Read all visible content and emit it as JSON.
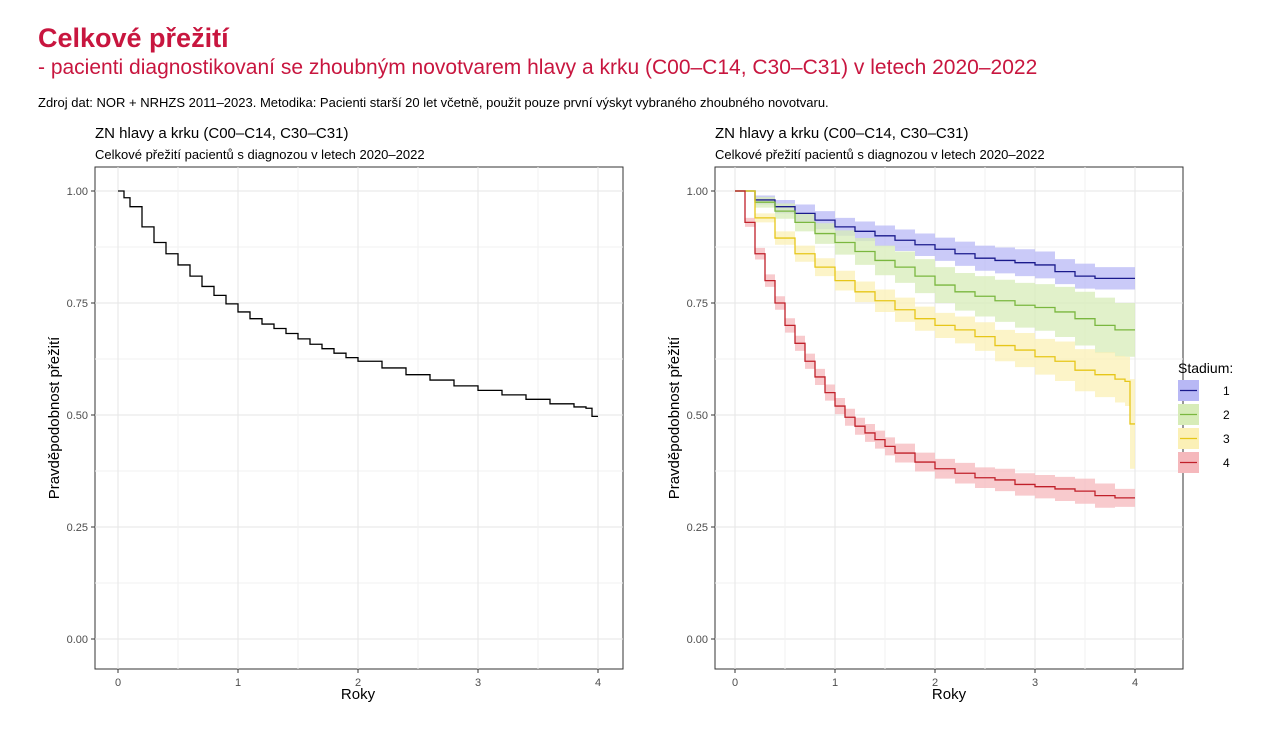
{
  "page": {
    "title": "Celkové přežití",
    "subtitle": "- pacienti diagnostikovaní se zhoubným novotvarem hlavy a krku (C00–C14, C30–C31) v letech 2020–2022",
    "source": "Zdroj dat: NOR + NRHZS 2011–2023. Metodika: Pacienti starší 20 let včetně, použit pouze první výskyt vybraného zhoubného novotvaru."
  },
  "chart_data": [
    {
      "type": "line",
      "title": "ZN hlavy a krku (C00–C14, C30–C31)",
      "subtitle": "Celkové přežití pacientů s diagnozou v letech 2020–2022",
      "xlabel": "Roky",
      "ylabel": "Pravděpodobnost přežití",
      "xlim": [
        0,
        4
      ],
      "ylim": [
        0,
        1
      ],
      "xticks": [
        "0",
        "1",
        "2",
        "3",
        "4"
      ],
      "yticks": [
        "0.00",
        "0.25",
        "0.50",
        "0.75",
        "1.00"
      ],
      "grid": true,
      "series": [
        {
          "color": "#000000",
          "x": [
            0,
            0.05,
            0.1,
            0.2,
            0.3,
            0.4,
            0.5,
            0.6,
            0.7,
            0.8,
            0.9,
            1.0,
            1.1,
            1.2,
            1.3,
            1.4,
            1.5,
            1.6,
            1.7,
            1.8,
            1.9,
            2.0,
            2.2,
            2.4,
            2.6,
            2.8,
            3.0,
            3.2,
            3.4,
            3.6,
            3.8,
            3.9,
            3.95,
            4.0
          ],
          "y": [
            1.0,
            0.985,
            0.965,
            0.92,
            0.885,
            0.86,
            0.835,
            0.81,
            0.787,
            0.767,
            0.748,
            0.73,
            0.715,
            0.703,
            0.693,
            0.682,
            0.67,
            0.658,
            0.648,
            0.638,
            0.628,
            0.62,
            0.605,
            0.59,
            0.578,
            0.565,
            0.555,
            0.545,
            0.535,
            0.525,
            0.518,
            0.515,
            0.497,
            0.497
          ]
        }
      ]
    },
    {
      "type": "line",
      "title": "ZN hlavy a krku (C00–C14, C30–C31)",
      "subtitle": "Celkové přežití pacientů s diagnozou v letech 2020–2022",
      "xlabel": "Roky",
      "ylabel": "Pravděpodobnost přežití",
      "xlim": [
        0,
        4
      ],
      "ylim": [
        0,
        1
      ],
      "xticks": [
        "0",
        "1",
        "2",
        "3",
        "4"
      ],
      "yticks": [
        "0.00",
        "0.25",
        "0.50",
        "0.75",
        "1.00"
      ],
      "grid": true,
      "legend": {
        "title": "Stadium:",
        "position": "right"
      },
      "series": [
        {
          "name": "1",
          "color": "#1a1a8c",
          "band": "#b8b8f5",
          "x": [
            0,
            0.2,
            0.4,
            0.6,
            0.8,
            1.0,
            1.2,
            1.4,
            1.6,
            1.8,
            2.0,
            2.2,
            2.4,
            2.6,
            2.8,
            3.0,
            3.2,
            3.4,
            3.6,
            3.8,
            4.0
          ],
          "y": [
            1.0,
            0.98,
            0.965,
            0.95,
            0.935,
            0.92,
            0.91,
            0.9,
            0.89,
            0.88,
            0.87,
            0.86,
            0.85,
            0.845,
            0.84,
            0.835,
            0.82,
            0.81,
            0.805,
            0.805,
            0.805
          ],
          "lower": [
            1.0,
            0.97,
            0.95,
            0.93,
            0.915,
            0.9,
            0.888,
            0.877,
            0.866,
            0.855,
            0.844,
            0.833,
            0.822,
            0.816,
            0.81,
            0.805,
            0.792,
            0.782,
            0.78,
            0.78,
            0.78
          ],
          "upper": [
            1.0,
            0.99,
            0.98,
            0.97,
            0.955,
            0.94,
            0.932,
            0.923,
            0.914,
            0.905,
            0.896,
            0.887,
            0.878,
            0.874,
            0.87,
            0.865,
            0.848,
            0.838,
            0.83,
            0.83,
            0.83
          ]
        },
        {
          "name": "2",
          "color": "#7ab73f",
          "band": "#d7ecb8",
          "x": [
            0,
            0.2,
            0.4,
            0.6,
            0.8,
            1.0,
            1.2,
            1.4,
            1.6,
            1.8,
            2.0,
            2.2,
            2.4,
            2.6,
            2.8,
            3.0,
            3.2,
            3.4,
            3.6,
            3.8,
            4.0
          ],
          "y": [
            1.0,
            0.975,
            0.955,
            0.93,
            0.905,
            0.885,
            0.865,
            0.845,
            0.83,
            0.81,
            0.79,
            0.775,
            0.765,
            0.755,
            0.745,
            0.74,
            0.73,
            0.715,
            0.7,
            0.69,
            0.69
          ],
          "lower": [
            1.0,
            0.963,
            0.938,
            0.91,
            0.882,
            0.858,
            0.835,
            0.812,
            0.795,
            0.772,
            0.75,
            0.733,
            0.72,
            0.708,
            0.695,
            0.688,
            0.674,
            0.655,
            0.638,
            0.63,
            0.63
          ],
          "upper": [
            1.0,
            0.987,
            0.972,
            0.95,
            0.928,
            0.912,
            0.895,
            0.878,
            0.865,
            0.848,
            0.83,
            0.817,
            0.81,
            0.802,
            0.795,
            0.792,
            0.786,
            0.775,
            0.762,
            0.75,
            0.75
          ]
        },
        {
          "name": "3",
          "color": "#e6c619",
          "band": "#fbf0b6",
          "x": [
            0,
            0.2,
            0.4,
            0.6,
            0.8,
            1.0,
            1.2,
            1.4,
            1.6,
            1.8,
            2.0,
            2.2,
            2.4,
            2.6,
            2.8,
            3.0,
            3.2,
            3.4,
            3.6,
            3.8,
            3.9,
            3.95,
            4.0
          ],
          "y": [
            1.0,
            0.94,
            0.895,
            0.86,
            0.83,
            0.8,
            0.775,
            0.755,
            0.735,
            0.715,
            0.7,
            0.69,
            0.675,
            0.655,
            0.645,
            0.63,
            0.62,
            0.6,
            0.59,
            0.58,
            0.575,
            0.48,
            0.48
          ],
          "lower": [
            1.0,
            0.93,
            0.88,
            0.842,
            0.81,
            0.778,
            0.752,
            0.73,
            0.708,
            0.688,
            0.672,
            0.66,
            0.643,
            0.62,
            0.607,
            0.59,
            0.576,
            0.553,
            0.54,
            0.528,
            0.52,
            0.38,
            0.38
          ],
          "upper": [
            1.0,
            0.95,
            0.91,
            0.878,
            0.85,
            0.822,
            0.798,
            0.78,
            0.762,
            0.742,
            0.728,
            0.72,
            0.707,
            0.69,
            0.683,
            0.67,
            0.664,
            0.647,
            0.64,
            0.632,
            0.63,
            0.58,
            0.58
          ]
        },
        {
          "name": "4",
          "color": "#c0202a",
          "band": "#f5b8bc",
          "x": [
            0,
            0.1,
            0.2,
            0.3,
            0.4,
            0.5,
            0.6,
            0.7,
            0.8,
            0.9,
            1.0,
            1.1,
            1.2,
            1.3,
            1.4,
            1.5,
            1.6,
            1.8,
            2.0,
            2.2,
            2.4,
            2.6,
            2.8,
            3.0,
            3.2,
            3.4,
            3.6,
            3.8,
            4.0
          ],
          "y": [
            1.0,
            0.93,
            0.86,
            0.8,
            0.75,
            0.7,
            0.66,
            0.62,
            0.585,
            0.55,
            0.52,
            0.495,
            0.475,
            0.46,
            0.445,
            0.43,
            0.415,
            0.395,
            0.38,
            0.37,
            0.36,
            0.355,
            0.345,
            0.34,
            0.335,
            0.33,
            0.32,
            0.315,
            0.315
          ],
          "lower": [
            1.0,
            0.92,
            0.847,
            0.786,
            0.735,
            0.684,
            0.643,
            0.603,
            0.567,
            0.532,
            0.502,
            0.476,
            0.456,
            0.44,
            0.425,
            0.41,
            0.394,
            0.374,
            0.358,
            0.347,
            0.337,
            0.33,
            0.32,
            0.314,
            0.308,
            0.302,
            0.293,
            0.295,
            0.295
          ],
          "upper": [
            1.0,
            0.94,
            0.873,
            0.814,
            0.765,
            0.716,
            0.677,
            0.637,
            0.603,
            0.568,
            0.538,
            0.514,
            0.494,
            0.48,
            0.465,
            0.45,
            0.436,
            0.416,
            0.402,
            0.393,
            0.383,
            0.38,
            0.37,
            0.366,
            0.362,
            0.358,
            0.347,
            0.335,
            0.335
          ]
        }
      ]
    }
  ]
}
